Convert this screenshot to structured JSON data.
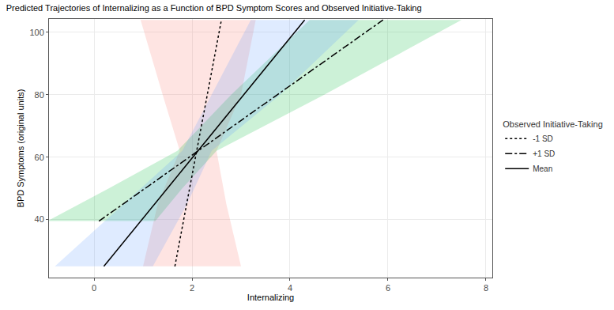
{
  "chart_data": {
    "type": "line",
    "title": "Predicted Trajectories of Internalizing as a Function of BPD Symptom Scores and Observed Initiative-Taking",
    "x_label": "Internalizing",
    "y_label": "BPD Symptoms (original units)",
    "legend_title": "Observed Initiative-Taking",
    "xlim": [
      -0.92,
      8.13
    ],
    "ylim": [
      21.4,
      104.3
    ],
    "xticks": [
      0,
      2,
      4,
      6,
      8
    ],
    "yticks": [
      40,
      60,
      80,
      100
    ],
    "grid": true,
    "legend": "right",
    "series": [
      {
        "name": "-1 SD",
        "color": "#F8766D",
        "line_style": "dotted",
        "y": [
          25,
          45,
          62,
          80,
          104
        ],
        "x": [
          1.65,
          1.89,
          2.1,
          2.31,
          2.6
        ],
        "ci_lower": [
          1.0,
          1.3,
          1.75,
          1.4,
          0.95
        ],
        "ci_upper": [
          3.0,
          2.7,
          2.5,
          3.0,
          3.3
        ]
      },
      {
        "name": "+1 SD",
        "color": "#00BA38",
        "line_style": "dashdot",
        "y": [
          39.5,
          50,
          62,
          80,
          104
        ],
        "x": [
          0.1,
          1.04,
          2.12,
          3.74,
          5.9
        ],
        "ci_lower": [
          -0.95,
          0.3,
          1.7,
          2.8,
          4.4
        ],
        "ci_upper": [
          1.25,
          1.8,
          2.5,
          4.7,
          7.5
        ]
      },
      {
        "name": "Mean",
        "color": "#619CFF",
        "line_style": "solid",
        "y": [
          25,
          45,
          62,
          80,
          104
        ],
        "x": [
          0.2,
          1.24,
          2.12,
          3.05,
          4.3
        ],
        "ci_lower": [
          -0.8,
          0.6,
          1.8,
          2.4,
          3.2
        ],
        "ci_upper": [
          1.2,
          1.9,
          2.4,
          3.8,
          5.4
        ]
      }
    ]
  }
}
